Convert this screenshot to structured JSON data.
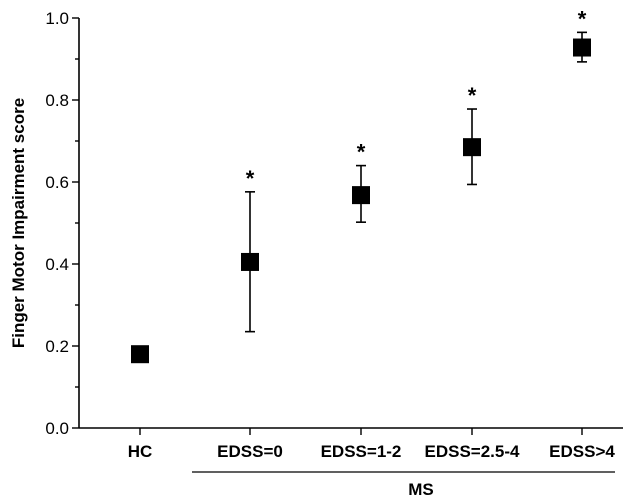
{
  "chart_data": {
    "type": "scatter",
    "title": "",
    "xlabel": "",
    "ylabel": "Finger Motor Impairment score",
    "ylim": [
      0.0,
      1.0
    ],
    "yticks": [
      "0.0",
      "0.2",
      "0.4",
      "0.6",
      "0.8",
      "1.0"
    ],
    "categories": [
      "HC",
      "EDSS=0",
      "EDSS=1-2",
      "EDSS=2.5-4",
      "EDSS>4"
    ],
    "values": [
      0.18,
      0.405,
      0.568,
      0.685,
      0.928
    ],
    "error_low": [
      0.165,
      0.235,
      0.502,
      0.594,
      0.893
    ],
    "error_high": [
      0.19,
      0.576,
      0.64,
      0.778,
      0.965
    ],
    "significance": [
      "",
      "*",
      "*",
      "*",
      "*"
    ],
    "group_label": "MS",
    "group_categories": [
      "EDSS=0",
      "EDSS=1-2",
      "EDSS=2.5-4",
      "EDSS>4"
    ],
    "grid": false,
    "legend": "none",
    "marker_color": "#000000"
  }
}
